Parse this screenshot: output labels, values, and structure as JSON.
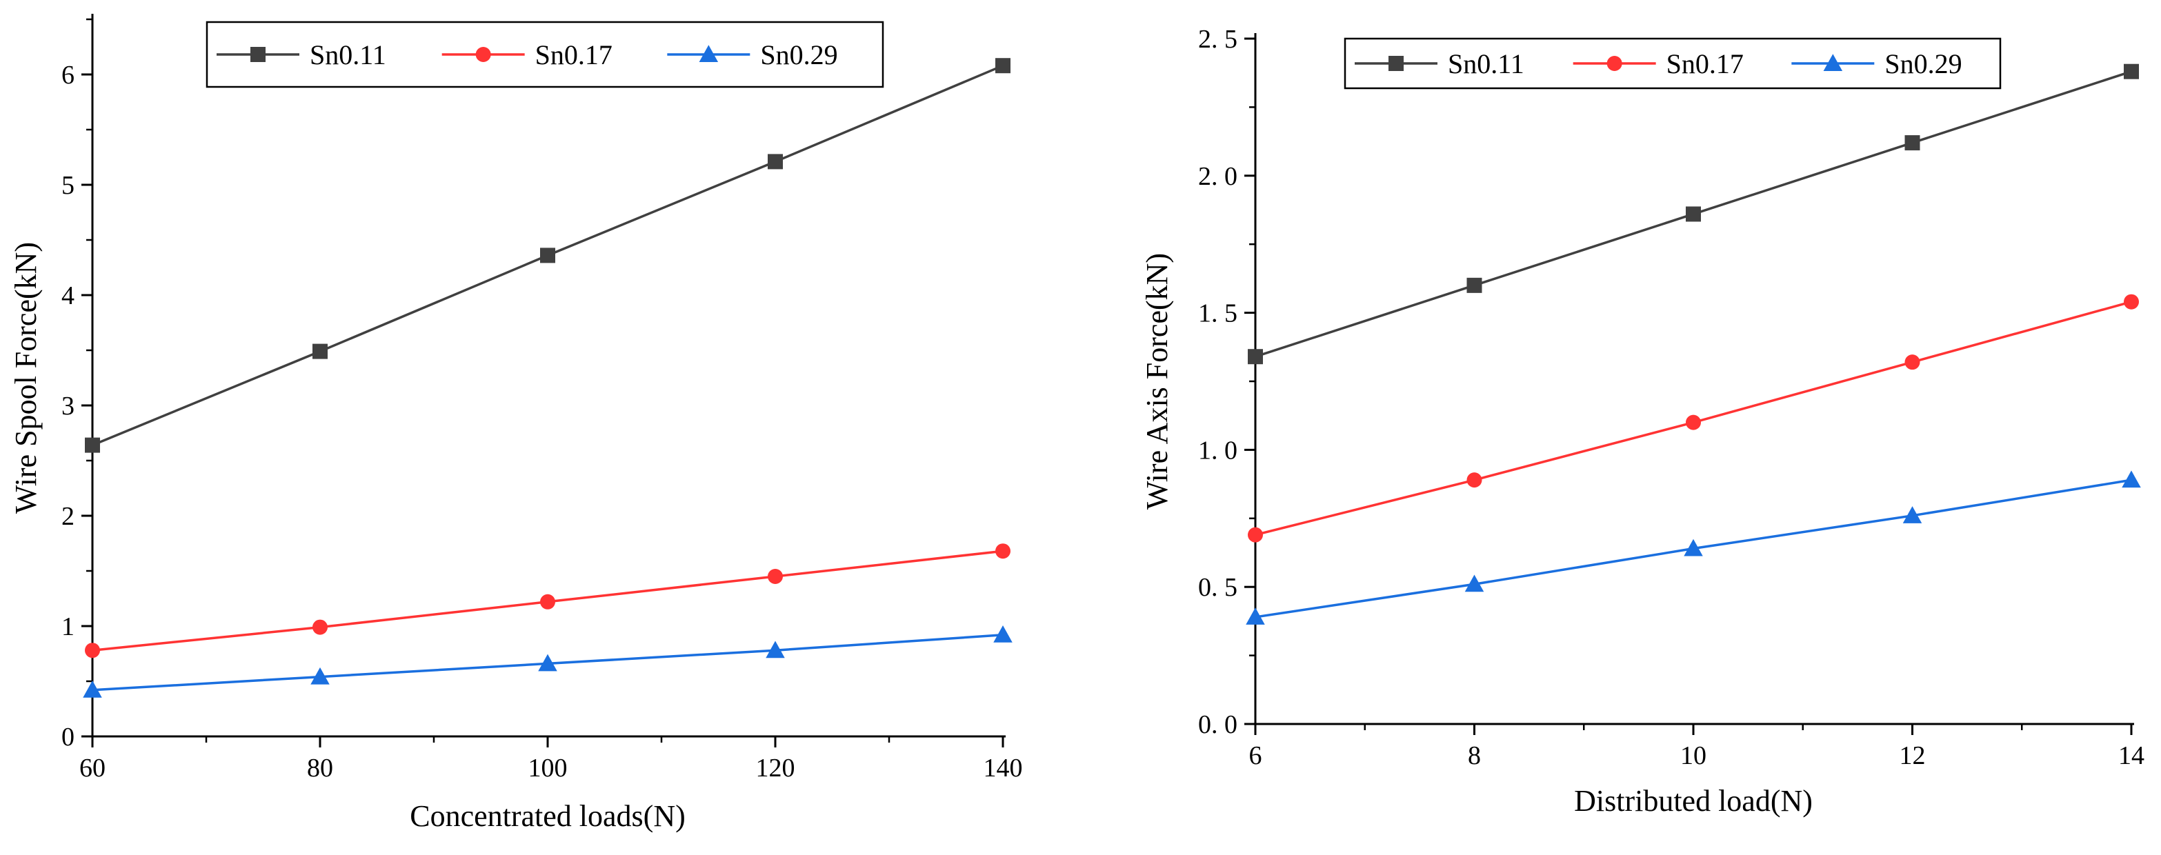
{
  "chart_data": [
    {
      "type": "line",
      "xlabel": "Concentrated loads(N)",
      "ylabel": "Wire Spool Force(kN)",
      "xlim": [
        60,
        140
      ],
      "ylim": [
        0,
        6.5
      ],
      "xticks": [
        60,
        80,
        100,
        120,
        140
      ],
      "xtick_labels": [
        "60",
        "80",
        "100",
        "120",
        "140"
      ],
      "yticks": [
        0,
        1,
        2,
        3,
        4,
        5,
        6
      ],
      "ytick_labels": [
        "0",
        "1",
        "2",
        "3",
        "4",
        "5",
        "6"
      ],
      "x": [
        60,
        80,
        100,
        120,
        140
      ],
      "legend_position": "top",
      "series": [
        {
          "name": "Sn0.11",
          "values": [
            2.64,
            3.49,
            4.36,
            5.21,
            6.08
          ],
          "color": "#404040",
          "marker": "square"
        },
        {
          "name": "Sn0.17",
          "values": [
            0.78,
            0.99,
            1.22,
            1.45,
            1.68
          ],
          "color": "#ff3333",
          "marker": "circle"
        },
        {
          "name": "Sn0.29",
          "values": [
            0.42,
            0.54,
            0.66,
            0.78,
            0.92
          ],
          "color": "#1a6fdf",
          "marker": "triangle"
        }
      ]
    },
    {
      "type": "line",
      "xlabel": "Distributed load(N)",
      "ylabel": "Wire Axis Force(kN)",
      "xlim": [
        6,
        14
      ],
      "ylim": [
        0,
        2.5
      ],
      "xticks": [
        6,
        8,
        10,
        12,
        14
      ],
      "xtick_labels": [
        "6",
        "8",
        "10",
        "12",
        "14"
      ],
      "yticks": [
        0,
        0.5,
        1.0,
        1.5,
        2.0,
        2.5
      ],
      "ytick_labels": [
        "0. 0",
        "0. 5",
        "1. 0",
        "1. 5",
        "2. 0",
        "2. 5"
      ],
      "x": [
        6,
        8,
        10,
        12,
        14
      ],
      "legend_position": "top-left",
      "series": [
        {
          "name": "Sn0.11",
          "values": [
            1.34,
            1.6,
            1.86,
            2.12,
            2.38
          ],
          "color": "#404040",
          "marker": "square"
        },
        {
          "name": "Sn0.17",
          "values": [
            0.69,
            0.89,
            1.1,
            1.32,
            1.54
          ],
          "color": "#ff3333",
          "marker": "circle"
        },
        {
          "name": "Sn0.29",
          "values": [
            0.39,
            0.51,
            0.64,
            0.76,
            0.89
          ],
          "color": "#1a6fdf",
          "marker": "triangle"
        }
      ]
    }
  ]
}
